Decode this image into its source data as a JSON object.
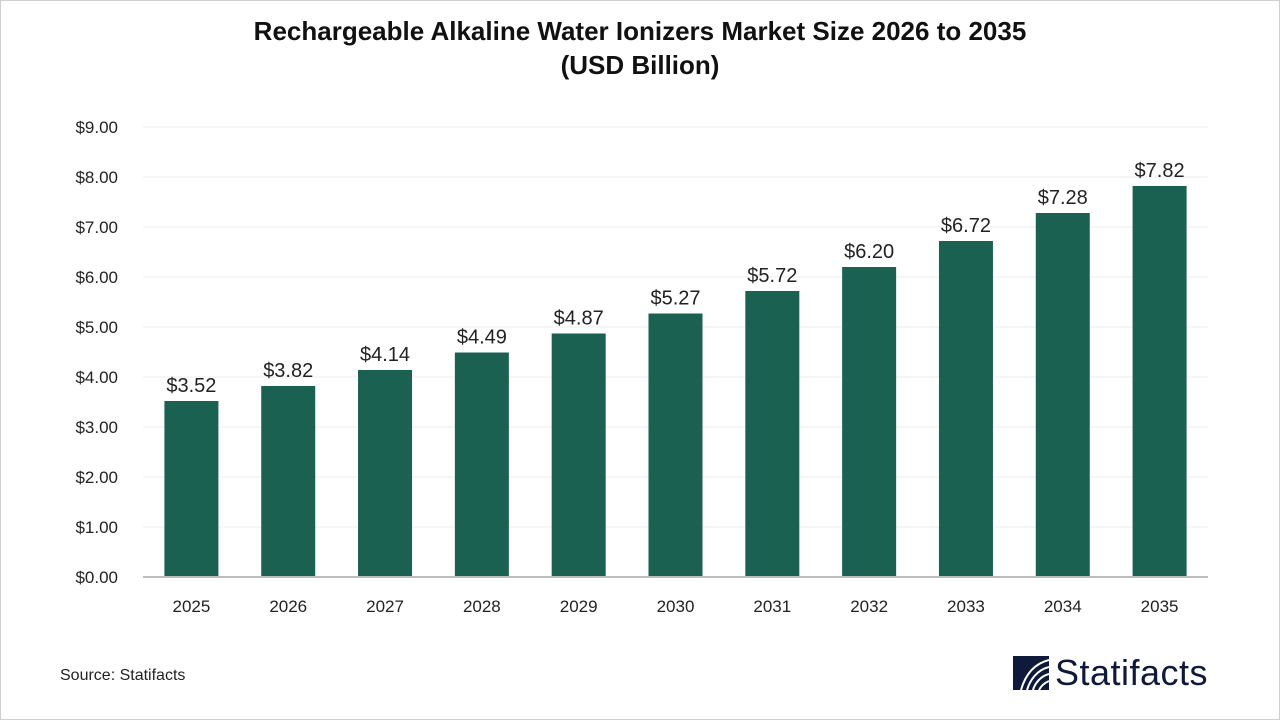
{
  "chart_data": {
    "type": "bar",
    "title": "Rechargeable Alkaline Water Ionizers Market Size 2026 to 2035",
    "subtitle": "(USD Billion)",
    "categories": [
      "2025",
      "2026",
      "2027",
      "2028",
      "2029",
      "2030",
      "2031",
      "2032",
      "2033",
      "2034",
      "2035"
    ],
    "values": [
      3.52,
      3.82,
      4.14,
      4.49,
      4.87,
      5.27,
      5.72,
      6.2,
      6.72,
      7.28,
      7.82
    ],
    "data_labels": [
      "$3.52",
      "$3.82",
      "$4.14",
      "$4.49",
      "$4.87",
      "$5.27",
      "$5.72",
      "$6.20",
      "$6.72",
      "$7.28",
      "$7.82"
    ],
    "yticks": [
      "$0.00",
      "$1.00",
      "$2.00",
      "$3.00",
      "$4.00",
      "$5.00",
      "$6.00",
      "$7.00",
      "$8.00",
      "$9.00"
    ],
    "ylim": [
      0,
      9
    ],
    "xlabel": "",
    "ylabel": "",
    "grid": true,
    "bar_color": "#1a6152"
  },
  "source": "Source: Statifacts",
  "logo": {
    "text": "Statifacts",
    "color": "#0f1a3a"
  }
}
